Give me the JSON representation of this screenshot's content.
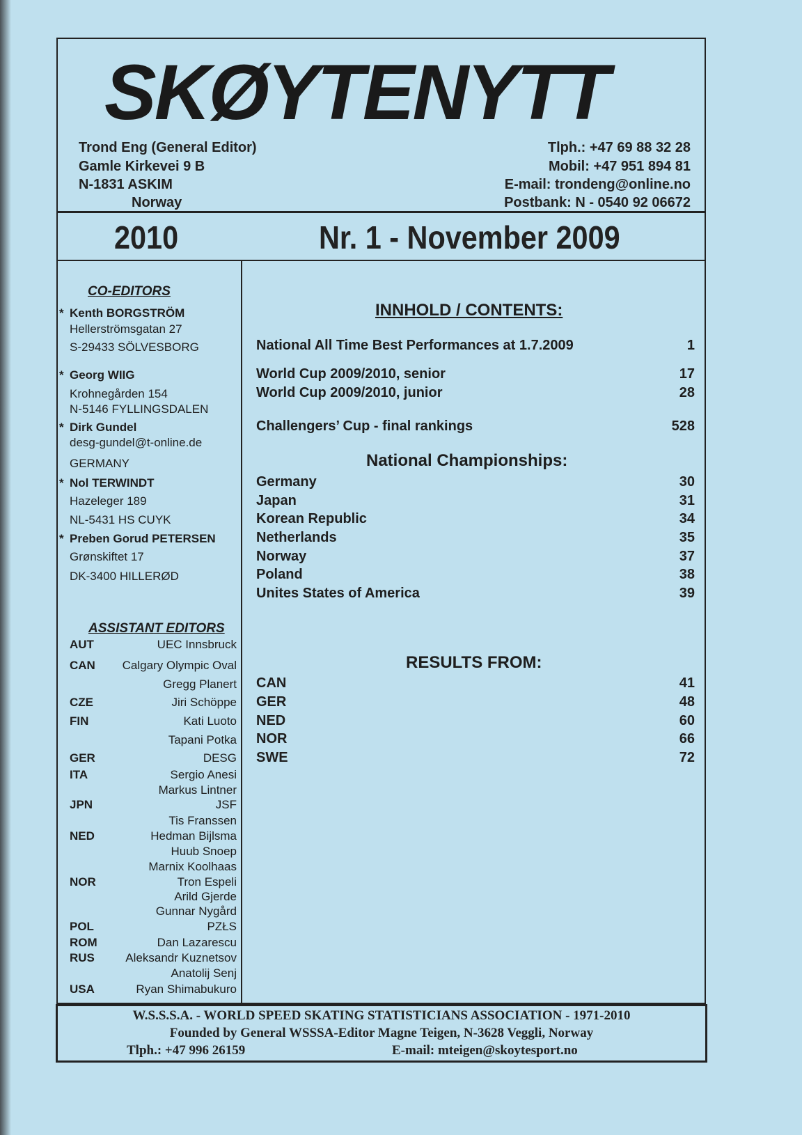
{
  "masthead": {
    "title": "SKØYTENYTT",
    "editor_lines": [
      "Trond Eng (General Editor)",
      "Gamle Kirkevei 9 B",
      "N-1831 ASKIM",
      "Norway"
    ],
    "contact_lines": [
      "Tlph.: +47  69 88 32 28",
      "Mobil:  +47  951 894 81",
      "E-mail:  trondeng@online.no",
      "Postbank:  N - 0540 92 06672"
    ],
    "year": "2010",
    "issue": "Nr. 1 - November 2009"
  },
  "co_editors": {
    "heading": "CO-EDITORS",
    "entries": [
      {
        "name": "Kenth BORGSTRÖM",
        "lines": [
          "Hellerströmsgatan 27",
          "S-29433 SÖLVESBORG"
        ]
      },
      {
        "name": "Georg WIIG",
        "lines": [
          "Krohnegården 154",
          "N-5146 FYLLINGSDALEN"
        ]
      },
      {
        "name": "Dirk Gundel",
        "lines": [
          "desg-gundel@t-online.de",
          "GERMANY"
        ]
      },
      {
        "name": "Nol TERWINDT",
        "lines": [
          "Hazeleger 189",
          "NL-5431 HS CUYK"
        ]
      },
      {
        "name": "Preben Gorud PETERSEN",
        "lines": [
          "Grønskiftet 17",
          "DK-3400 HILLERØD"
        ]
      }
    ]
  },
  "assistant_editors": {
    "heading": "ASSISTANT EDITORS",
    "rows": [
      {
        "code": "AUT",
        "name": "UEC Innsbruck"
      },
      {
        "code": "CAN",
        "name": "Calgary Olympic Oval"
      },
      {
        "code": "",
        "name": "Gregg Planert"
      },
      {
        "code": "CZE",
        "name": "Jiri Schöppe"
      },
      {
        "code": "FIN",
        "name": "Kati Luoto"
      },
      {
        "code": "",
        "name": "Tapani Potka"
      },
      {
        "code": "GER",
        "name": "DESG"
      },
      {
        "code": "ITA",
        "name": "Sergio Anesi"
      },
      {
        "code": "",
        "name": "Markus Lintner"
      },
      {
        "code": "JPN",
        "name": "JSF"
      },
      {
        "code": "",
        "name": "Tis Franssen"
      },
      {
        "code": "NED",
        "name": "Hedman Bijlsma"
      },
      {
        "code": "",
        "name": "Huub Snoep"
      },
      {
        "code": "",
        "name": "Marnix Koolhaas"
      },
      {
        "code": "NOR",
        "name": "Tron Espeli"
      },
      {
        "code": "",
        "name": "Arild Gjerde"
      },
      {
        "code": "",
        "name": "Gunnar Nygård"
      },
      {
        "code": "POL",
        "name": "PZŁS"
      },
      {
        "code": "ROM",
        "name": "Dan Lazarescu"
      },
      {
        "code": "RUS",
        "name": "Aleksandr Kuznetsov"
      },
      {
        "code": "",
        "name": "Anatolij Senj"
      },
      {
        "code": "USA",
        "name": "Ryan Shimabukuro"
      }
    ]
  },
  "contents": {
    "heading": "INNHOLD / CONTENTS:",
    "items": [
      {
        "label": "National All Time Best Performances at 1.7.2009",
        "page": "1"
      },
      {
        "label": "World Cup 2009/2010, senior",
        "page": "17"
      },
      {
        "label": "World Cup 2009/2010, junior",
        "page": "28"
      },
      {
        "label": "Challengers’ Cup - final rankings",
        "page": "528"
      }
    ],
    "nat_heading": "National Championships:",
    "national": [
      {
        "label": "Germany",
        "page": "30"
      },
      {
        "label": "Japan",
        "page": "31"
      },
      {
        "label": "Korean Republic",
        "page": "34"
      },
      {
        "label": "Netherlands",
        "page": "35"
      },
      {
        "label": "Norway",
        "page": "37"
      },
      {
        "label": "Poland",
        "page": "38"
      },
      {
        "label": "Unites States of America",
        "page": "39"
      }
    ],
    "results_heading": "RESULTS FROM:",
    "results": [
      {
        "label": "CAN",
        "page": "41"
      },
      {
        "label": "GER",
        "page": "48"
      },
      {
        "label": "NED",
        "page": "60"
      },
      {
        "label": "NOR",
        "page": "66"
      },
      {
        "label": "SWE",
        "page": "72"
      }
    ]
  },
  "footer": {
    "line1": "W.S.S.S.A. -  WORLD SPEED SKATING STATISTICIANS ASSOCIATION - 1971-2010",
    "line2": "Founded by General WSSSA-Editor Magne Teigen, N-3628 Veggli, Norway",
    "phone": "Tlph.: +47 996 26159",
    "email": "E-mail: mteigen@skoytesport.no"
  }
}
